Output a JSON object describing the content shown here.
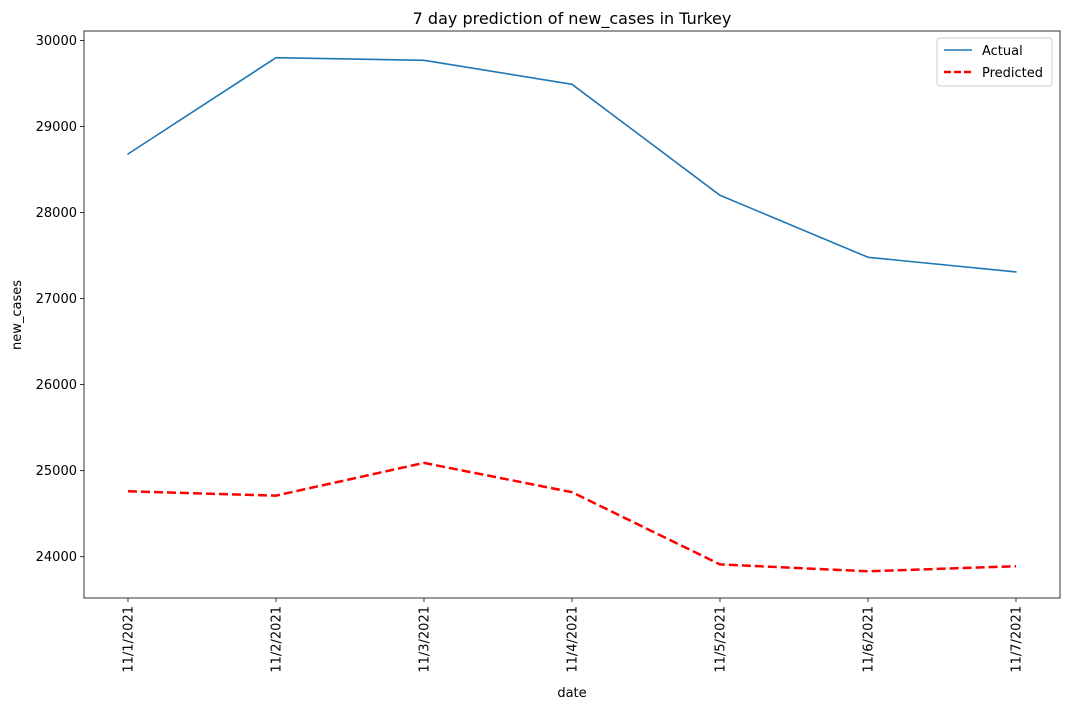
{
  "chart_data": {
    "type": "line",
    "title": "7 day prediction of new_cases in Turkey",
    "xlabel": "date",
    "ylabel": "new_cases",
    "categories": [
      "11/1/2021",
      "11/2/2021",
      "11/3/2021",
      "11/4/2021",
      "11/5/2021",
      "11/6/2021",
      "11/7/2021"
    ],
    "yticks": [
      24000,
      25000,
      26000,
      27000,
      28000,
      29000,
      30000
    ],
    "ylim": [
      23520,
      30110
    ],
    "grid": false,
    "legend_position": "top-right",
    "series": [
      {
        "name": "Actual",
        "values": [
          28680,
          29800,
          29770,
          29490,
          28200,
          27480,
          27310
        ],
        "color": "#1f77b4",
        "dashed": false
      },
      {
        "name": "Predicted",
        "values": [
          24760,
          24710,
          25090,
          24750,
          23910,
          23830,
          23890
        ],
        "color": "#ff0000",
        "dashed": true
      }
    ]
  }
}
